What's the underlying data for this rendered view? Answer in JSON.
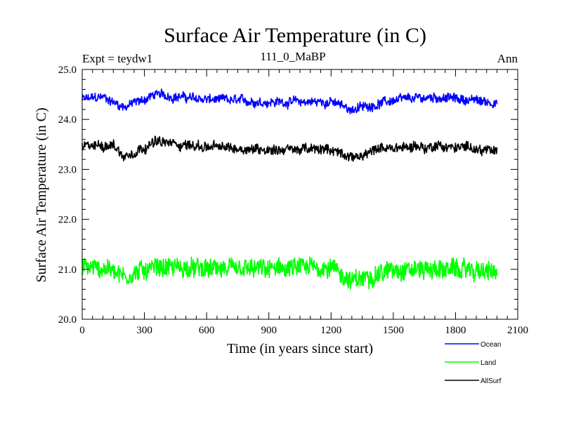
{
  "chart_data": {
    "type": "line",
    "title": "Surface Air Temperature (in C)",
    "subtitle_left": "Expt = teydw1",
    "subtitle_center": "111_0_MaBP",
    "subtitle_right": "Ann",
    "xlabel": "Time (in years since start)",
    "ylabel": "Surface Air Temperature (in C)",
    "xlim": [
      0,
      2100
    ],
    "ylim": [
      20.0,
      25.0
    ],
    "x_ticks": [
      0,
      300,
      600,
      900,
      1200,
      1500,
      1800,
      2100
    ],
    "x_tick_labels": [
      "0",
      "300",
      "600",
      "900",
      "1200",
      "1500",
      "1800",
      "2100"
    ],
    "y_ticks": [
      20.0,
      21.0,
      22.0,
      23.0,
      24.0,
      25.0
    ],
    "y_tick_labels": [
      "20.0",
      "21.0",
      "22.0",
      "23.0",
      "24.0",
      "25.0"
    ],
    "x_range": [
      0,
      2000
    ],
    "grid": false,
    "legend_position": "bottom-right",
    "series": [
      {
        "name": "Ocean",
        "color": "#0000ff",
        "mean": 24.37,
        "min": 24.1,
        "max": 24.62,
        "noise": 0.08,
        "low_freq": 0.05,
        "keypoints": [
          [
            0,
            24.4
          ],
          [
            100,
            24.45
          ],
          [
            200,
            24.25
          ],
          [
            300,
            24.4
          ],
          [
            350,
            24.5
          ],
          [
            600,
            24.4
          ],
          [
            900,
            24.35
          ],
          [
            1200,
            24.35
          ],
          [
            1300,
            24.2
          ],
          [
            1500,
            24.38
          ],
          [
            1700,
            24.45
          ],
          [
            1900,
            24.38
          ],
          [
            2000,
            24.33
          ]
        ]
      },
      {
        "name": "Land",
        "color": "#00ff00",
        "mean": 21.0,
        "min": 20.4,
        "max": 21.5,
        "noise": 0.18,
        "low_freq": 0.06,
        "keypoints": [
          [
            0,
            21.05
          ],
          [
            150,
            21.0
          ],
          [
            200,
            20.85
          ],
          [
            350,
            21.05
          ],
          [
            600,
            21.0
          ],
          [
            900,
            21.0
          ],
          [
            1200,
            21.05
          ],
          [
            1300,
            20.75
          ],
          [
            1500,
            21.0
          ],
          [
            1800,
            21.0
          ],
          [
            2000,
            20.95
          ]
        ]
      },
      {
        "name": "AllSurf",
        "color": "#000000",
        "mean": 23.42,
        "min": 23.15,
        "max": 23.72,
        "noise": 0.09,
        "low_freq": 0.05,
        "keypoints": [
          [
            0,
            23.45
          ],
          [
            150,
            23.5
          ],
          [
            200,
            23.25
          ],
          [
            350,
            23.55
          ],
          [
            600,
            23.45
          ],
          [
            900,
            23.4
          ],
          [
            1200,
            23.4
          ],
          [
            1300,
            23.25
          ],
          [
            1500,
            23.45
          ],
          [
            1800,
            23.45
          ],
          [
            2000,
            23.38
          ]
        ]
      }
    ]
  }
}
